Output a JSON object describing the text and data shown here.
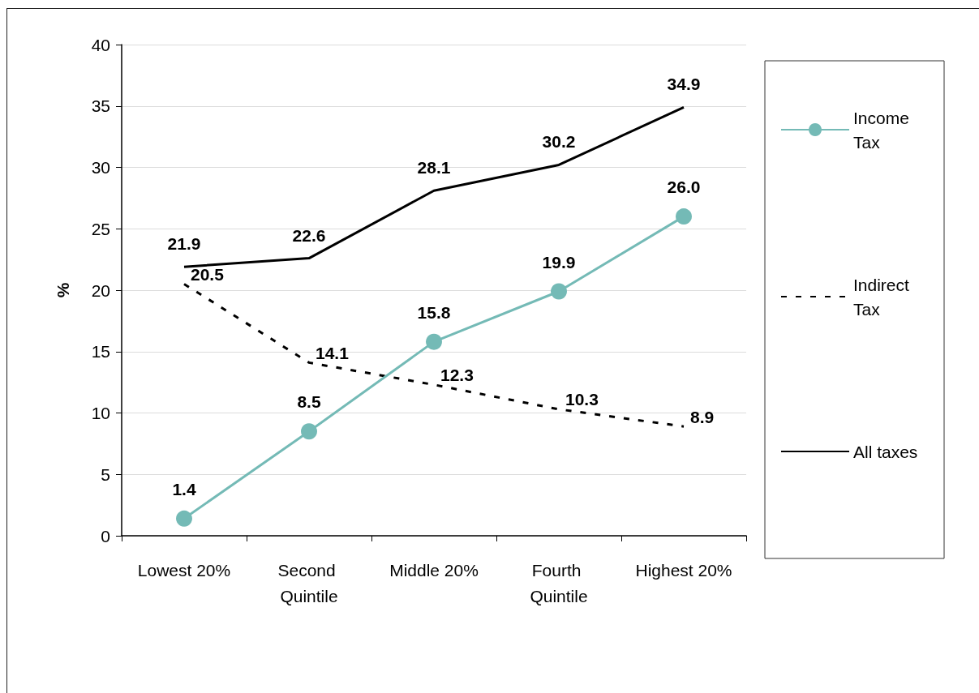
{
  "chart_data": {
    "type": "line",
    "categories": [
      "Lowest 20%",
      "Second Quintile",
      "Middle 20%",
      "Fourth Quintile",
      "Highest 20%"
    ],
    "ylabel": "%",
    "ylim": [
      0,
      40
    ],
    "yticks": [
      0,
      5,
      10,
      15,
      20,
      25,
      30,
      35,
      40
    ],
    "series": [
      {
        "name": "Income Tax",
        "color": "#74bab6",
        "marker": "circle",
        "line_style": "solid",
        "values": [
          1.4,
          8.5,
          15.8,
          19.9,
          26.0
        ],
        "value_labels": [
          "1.4",
          "8.5",
          "15.8",
          "19.9",
          "26.0"
        ]
      },
      {
        "name": "Indirect Tax",
        "color": "#000000",
        "marker": "none",
        "line_style": "dashed",
        "values": [
          20.5,
          14.1,
          12.3,
          10.3,
          8.9
        ],
        "value_labels": [
          "20.5",
          "14.1",
          "12.3",
          "10.3",
          "8.9"
        ]
      },
      {
        "name": "All taxes",
        "color": "#000000",
        "marker": "none",
        "line_style": "solid",
        "values": [
          21.9,
          22.6,
          28.1,
          30.2,
          34.9
        ],
        "value_labels": [
          "21.9",
          "22.6",
          "28.1",
          "30.2",
          "34.9"
        ]
      }
    ],
    "grid": "y",
    "legend": "right"
  }
}
